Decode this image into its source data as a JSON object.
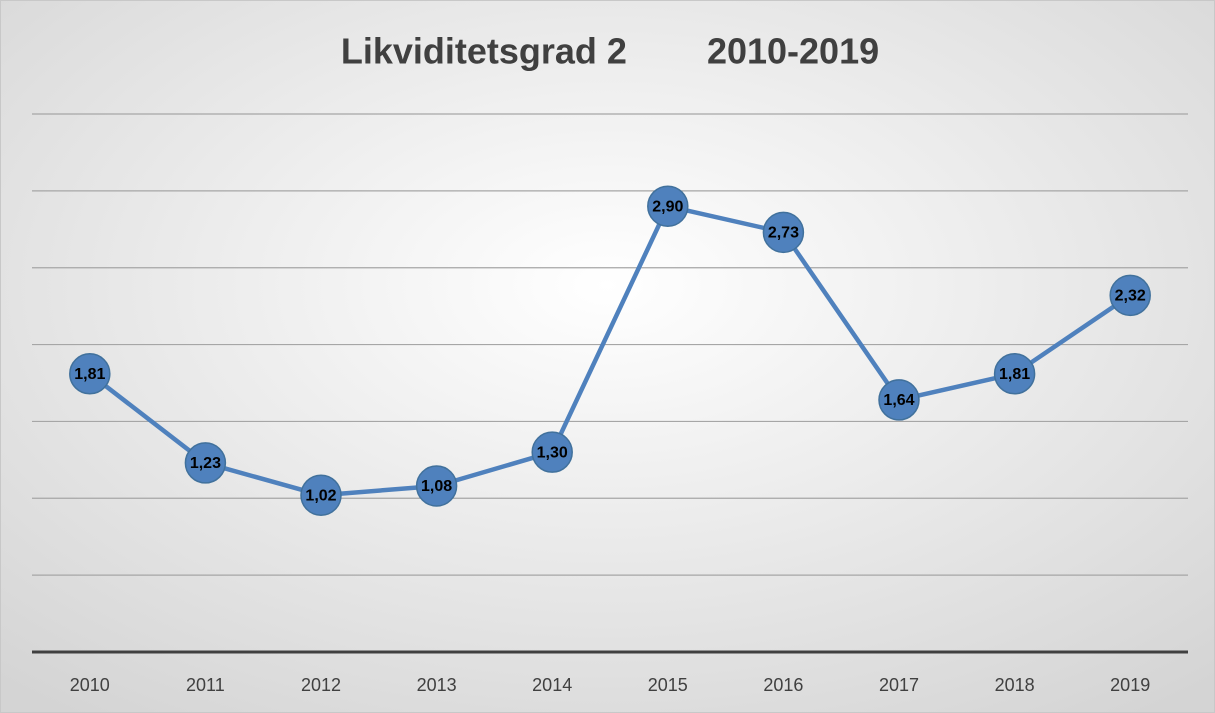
{
  "chart_data": {
    "type": "line",
    "title": "Likviditetsgrad 2        2010-2019",
    "categories": [
      "2010",
      "2011",
      "2012",
      "2013",
      "2014",
      "2015",
      "2016",
      "2017",
      "2018",
      "2019"
    ],
    "series": [
      {
        "color": "#4f81bd",
        "values": [
          1.81,
          1.23,
          1.02,
          1.08,
          1.3,
          2.9,
          2.73,
          1.64,
          1.81,
          2.32
        ],
        "value_labels": [
          "1,81",
          "1,23",
          "1,02",
          "1,08",
          "1,30",
          "2,90",
          "2,73",
          "1,64",
          "1,81",
          "2,32"
        ]
      }
    ],
    "ylim": [
      0,
      3.5
    ],
    "yticks": [
      0,
      0.5,
      1,
      1.5,
      2,
      2.5,
      3,
      3.5
    ],
    "grid": true
  }
}
